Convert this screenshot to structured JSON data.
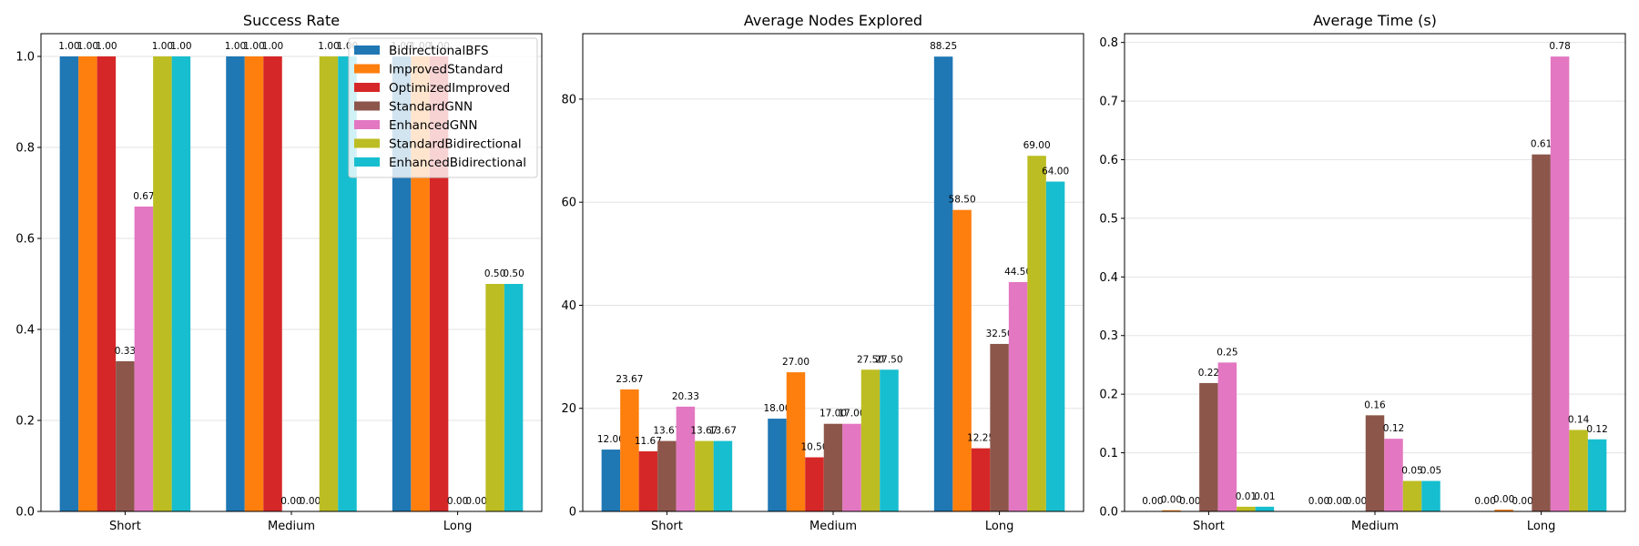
{
  "colors": {
    "BidirectionalBFS": "#1f77b4",
    "ImprovedStandard": "#ff7f0e",
    "OptimizedImproved": "#d62728",
    "StandardGNN": "#8c564b",
    "EnhancedGNN": "#e377c2",
    "StandardBidirectional": "#bcbd22",
    "EnhancedBidirectional": "#17becf"
  },
  "chart_data": [
    {
      "type": "bar",
      "title": "Success Rate",
      "xlabel": "",
      "ylabel": "",
      "categories": [
        "Short",
        "Medium",
        "Long"
      ],
      "ylim": [
        0,
        1.05
      ],
      "yticks": [
        "0.0",
        "0.2",
        "0.4",
        "0.6",
        "0.8",
        "1.0"
      ],
      "grid": "y",
      "legend": "top-right",
      "series": [
        {
          "name": "BidirectionalBFS",
          "values": [
            1.0,
            1.0,
            1.0
          ],
          "labels": [
            "1.00",
            "1.00",
            "1.00"
          ]
        },
        {
          "name": "ImprovedStandard",
          "values": [
            1.0,
            1.0,
            1.0
          ],
          "labels": [
            "1.00",
            "1.00",
            "1.00"
          ]
        },
        {
          "name": "OptimizedImproved",
          "values": [
            1.0,
            1.0,
            1.0
          ],
          "labels": [
            "1.00",
            "1.00",
            "1.00"
          ]
        },
        {
          "name": "StandardGNN",
          "values": [
            0.33,
            0.0,
            0.0
          ],
          "labels": [
            "0.33",
            "0.00",
            "0.00"
          ]
        },
        {
          "name": "EnhancedGNN",
          "values": [
            0.67,
            0.0,
            0.0
          ],
          "labels": [
            "0.67",
            "0.00",
            "0.00"
          ]
        },
        {
          "name": "StandardBidirectional",
          "values": [
            1.0,
            1.0,
            0.5
          ],
          "labels": [
            "1.00",
            "1.00",
            "0.50"
          ]
        },
        {
          "name": "EnhancedBidirectional",
          "values": [
            1.0,
            1.0,
            0.5
          ],
          "labels": [
            "1.00",
            "1.00",
            "0.50"
          ]
        }
      ]
    },
    {
      "type": "bar",
      "title": "Average Nodes Explored",
      "xlabel": "",
      "ylabel": "",
      "categories": [
        "Short",
        "Medium",
        "Long"
      ],
      "ylim": [
        0,
        92.7
      ],
      "yticks": [
        "0",
        "20",
        "40",
        "60",
        "80"
      ],
      "grid": "y",
      "legend": "none",
      "series": [
        {
          "name": "BidirectionalBFS",
          "values": [
            12.0,
            18.0,
            88.25
          ],
          "labels": [
            "12.00",
            "18.00",
            "88.25"
          ]
        },
        {
          "name": "ImprovedStandard",
          "values": [
            23.67,
            27.0,
            58.5
          ],
          "labels": [
            "23.67",
            "27.00",
            "58.50"
          ]
        },
        {
          "name": "OptimizedImproved",
          "values": [
            11.67,
            10.5,
            12.25
          ],
          "labels": [
            "11.67",
            "10.50",
            "12.25"
          ]
        },
        {
          "name": "StandardGNN",
          "values": [
            13.67,
            17.0,
            32.5
          ],
          "labels": [
            "13.67",
            "17.00",
            "32.50"
          ]
        },
        {
          "name": "EnhancedGNN",
          "values": [
            20.33,
            17.0,
            44.5
          ],
          "labels": [
            "20.33",
            "17.00",
            "44.50"
          ]
        },
        {
          "name": "StandardBidirectional",
          "values": [
            13.67,
            27.5,
            69.0
          ],
          "labels": [
            "13.67",
            "27.50",
            "69.00"
          ]
        },
        {
          "name": "EnhancedBidirectional",
          "values": [
            13.67,
            27.5,
            64.0
          ],
          "labels": [
            "13.67",
            "27.50",
            "64.00"
          ]
        }
      ]
    },
    {
      "type": "bar",
      "title": "Average Time (s)",
      "xlabel": "",
      "ylabel": "",
      "categories": [
        "Short",
        "Medium",
        "Long"
      ],
      "ylim": [
        0,
        0.815
      ],
      "yticks": [
        "0.0",
        "0.1",
        "0.2",
        "0.3",
        "0.4",
        "0.5",
        "0.6",
        "0.7",
        "0.8"
      ],
      "grid": "y",
      "legend": "none",
      "series": [
        {
          "name": "BidirectionalBFS",
          "values": [
            0.0,
            0.0,
            0.0
          ],
          "labels": [
            "0.00",
            "0.00",
            "0.00"
          ]
        },
        {
          "name": "ImprovedStandard",
          "values": [
            0.002,
            0.0,
            0.003
          ],
          "labels": [
            "0.00",
            "0.00",
            "0.00"
          ]
        },
        {
          "name": "OptimizedImproved",
          "values": [
            0.0,
            0.0,
            0.0
          ],
          "labels": [
            "0.00",
            "0.00",
            "0.00"
          ]
        },
        {
          "name": "StandardGNN",
          "values": [
            0.219,
            0.164,
            0.609
          ],
          "labels": [
            "0.22",
            "0.16",
            "0.61"
          ]
        },
        {
          "name": "EnhancedGNN",
          "values": [
            0.254,
            0.124,
            0.776
          ],
          "labels": [
            "0.25",
            "0.12",
            "0.78"
          ]
        },
        {
          "name": "StandardBidirectional",
          "values": [
            0.008,
            0.052,
            0.139
          ],
          "labels": [
            "0.01",
            "0.05",
            "0.14"
          ]
        },
        {
          "name": "EnhancedBidirectional",
          "values": [
            0.008,
            0.052,
            0.123
          ],
          "labels": [
            "0.01",
            "0.05",
            "0.12"
          ]
        }
      ]
    }
  ]
}
